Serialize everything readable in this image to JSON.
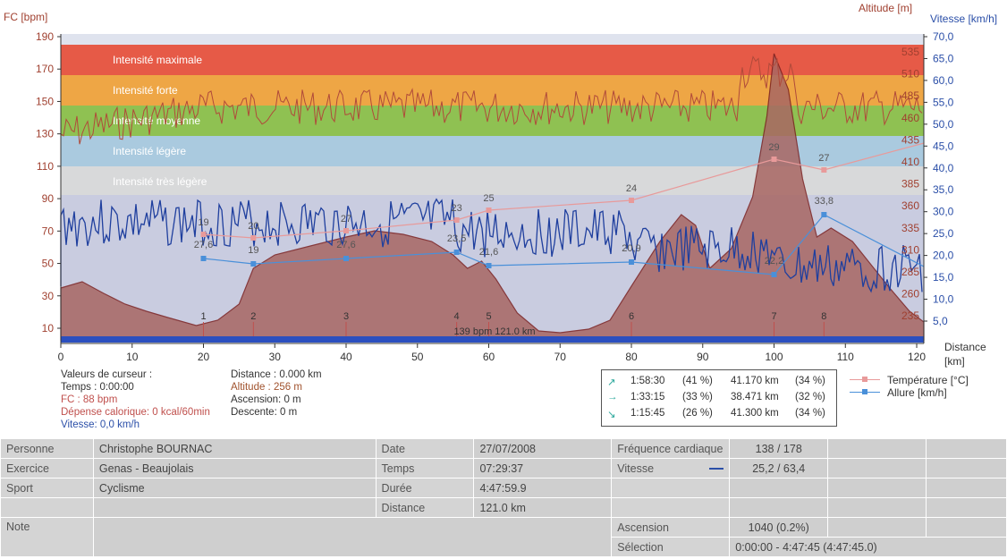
{
  "axes": {
    "left_title": "FC [bpm]",
    "right_alt_title": "Altitude  [m]",
    "right_speed_title": "Vitesse [km/h]",
    "x_title_1": "Distance",
    "x_title_2": "[km]",
    "fc_ticks": [
      "190",
      "170",
      "150",
      "130",
      "110",
      "90",
      "70",
      "50",
      "30",
      "10"
    ],
    "speed_ticks": [
      "70,0",
      "65,0",
      "60,0",
      "55,0",
      "50,0",
      "45,0",
      "40,0",
      "35,0",
      "30,0",
      "25,0",
      "20,0",
      "15,0",
      "10,0",
      "5,0"
    ],
    "alt_ticks": [
      "535",
      "510",
      "485",
      "460",
      "435",
      "410",
      "385",
      "360",
      "335",
      "310",
      "285",
      "260",
      "235"
    ],
    "x_ticks": [
      "0",
      "10",
      "20",
      "30",
      "40",
      "50",
      "60",
      "70",
      "80",
      "90",
      "100",
      "110",
      "120"
    ]
  },
  "zones": [
    {
      "label": "Intensité maximale",
      "color": "#e8533e"
    },
    {
      "label": "Intensité forte",
      "color": "#f0a33c"
    },
    {
      "label": "Intensité moyenne",
      "color": "#8cc04a"
    },
    {
      "label": "Intensité légère",
      "color": "#a9c9de"
    },
    {
      "label": "Intensité très légère",
      "color": "#d9d9d9"
    }
  ],
  "markers": [
    {
      "n": "1",
      "km": 20
    },
    {
      "n": "2",
      "km": 27
    },
    {
      "n": "3",
      "km": 40
    },
    {
      "n": "4",
      "km": 55.5
    },
    {
      "n": "5",
      "km": 60
    },
    {
      "n": "6",
      "km": 80
    },
    {
      "n": "7",
      "km": 100
    },
    {
      "n": "8",
      "km": 107
    }
  ],
  "temperature_points": [
    {
      "km": 20,
      "label": "19"
    },
    {
      "km": 27,
      "label": "20"
    },
    {
      "km": 40,
      "label": "27"
    },
    {
      "km": 55.5,
      "label": "23"
    },
    {
      "km": 60,
      "label": "25"
    },
    {
      "km": 80,
      "label": "24"
    },
    {
      "km": 100,
      "label": "29"
    },
    {
      "km": 107,
      "label": "27"
    }
  ],
  "pace_points": [
    {
      "km": 20,
      "label": "27,6"
    },
    {
      "km": 27,
      "label": "19"
    },
    {
      "km": 40,
      "label": "27,6"
    },
    {
      "km": 55.5,
      "label": "23,5"
    },
    {
      "km": 60,
      "label": "21,6"
    },
    {
      "km": 80,
      "label": "20,9"
    },
    {
      "km": 100,
      "label": "22,2"
    },
    {
      "km": 107,
      "label": "33,8"
    }
  ],
  "center_note": "139 bpm  121.0 km",
  "cursor": {
    "title": "Valeurs de curseur :",
    "temps": "Temps : 0:00:00",
    "fc": "FC : 88 bpm",
    "calorie": "Dépense calorique: 0 kcal/60min",
    "vitesse": "Vitesse: 0,0 km/h",
    "distance": "Distance : 0.000 km",
    "altitude": "Altitude : 256 m",
    "ascension": "Ascension: 0 m",
    "descente": "Descente: 0 m"
  },
  "summary": [
    {
      "icon": "↗",
      "time": "1:58:30",
      "pct": "(41 %)",
      "dist": "41.170 km",
      "dpct": "(34 %)",
      "color": "#2aa79b"
    },
    {
      "icon": "→",
      "time": "1:33:15",
      "pct": "(33 %)",
      "dist": "38.471 km",
      "dpct": "(32 %)",
      "color": "#2aa79b"
    },
    {
      "icon": "↘",
      "time": "1:15:45",
      "pct": "(26 %)",
      "dist": "41.300 km",
      "dpct": "(34 %)",
      "color": "#2aa79b"
    }
  ],
  "legend": {
    "temperature": "Température [°C]",
    "pace": "Allure [km/h]",
    "temp_color": "#e89a9a",
    "pace_color": "#4a90d9"
  },
  "info": {
    "personne_lbl": "Personne",
    "personne": "Christophe BOURNAC",
    "exercice_lbl": "Exercice",
    "exercice": "Genas - Beaujolais",
    "sport_lbl": "Sport",
    "sport": "Cyclisme",
    "note_lbl": "Note",
    "date_lbl": "Date",
    "date": "27/07/2008",
    "temps_lbl": "Temps",
    "temps": "07:29:37",
    "duree_lbl": "Durée",
    "duree": "4:47:59.9",
    "distance_lbl": "Distance",
    "distance": "121.0 km",
    "fc_lbl": "Fréquence cardiaque",
    "fc": "138 / 178",
    "vitesse_lbl": "Vitesse",
    "vitesse": "25,2 / 63,4",
    "ascension_lbl": "Ascension",
    "ascension": "1040 (0.2%)",
    "selection_lbl": "Sélection",
    "selection": "0:00:00 - 4:47:45 (4:47:45.0)"
  }
}
